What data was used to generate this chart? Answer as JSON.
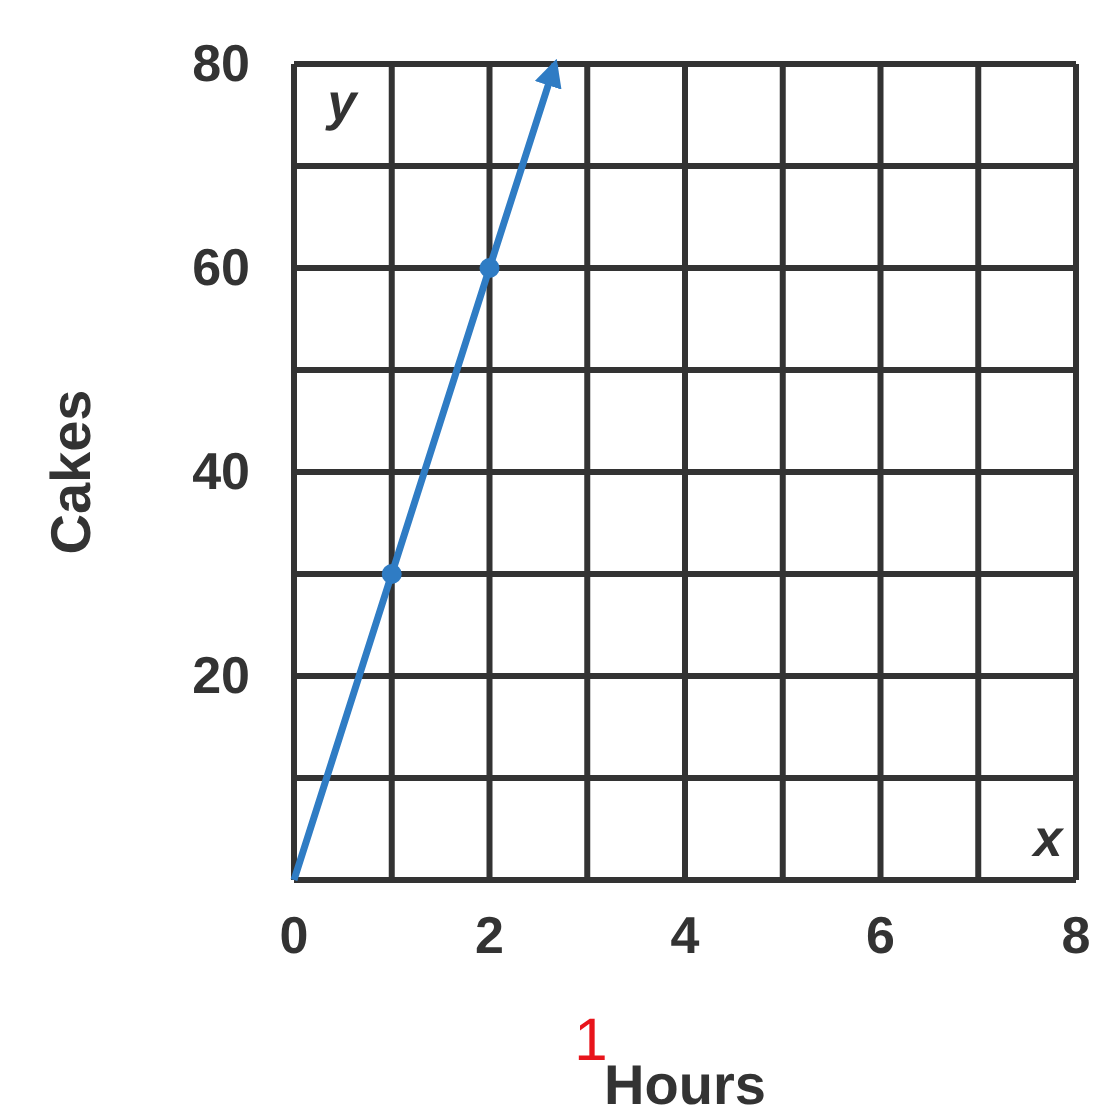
{
  "chart_data": {
    "type": "line",
    "xlabel": "Hours",
    "ylabel": "Cakes",
    "series": [
      {
        "type": "line",
        "color": "#2f7cc4",
        "x": [
          0,
          1,
          2,
          2.67
        ],
        "values": [
          0,
          30,
          60,
          80
        ]
      },
      {
        "type": "scatter",
        "color": "#2f7cc4",
        "x": [
          1,
          2
        ],
        "values": [
          30,
          60
        ]
      }
    ],
    "xlim": [
      0,
      8
    ],
    "ylim": [
      0,
      80
    ],
    "xticks": [
      0,
      {
        "value": 1,
        "label": null
      },
      2,
      {
        "value": 3,
        "label": null
      },
      4,
      {
        "value": 5,
        "label": null
      },
      6,
      {
        "value": 7,
        "label": null
      },
      8
    ],
    "yticks": [
      {
        "value": 0,
        "label": null
      },
      {
        "value": 10,
        "label": null
      },
      20,
      {
        "value": 30,
        "label": null
      },
      40,
      {
        "value": 50,
        "label": null
      },
      60,
      {
        "value": 70,
        "label": null
      },
      80
    ],
    "grid": true,
    "line_style": "solid",
    "annotations": [
      "y",
      "x",
      "1"
    ]
  }
}
